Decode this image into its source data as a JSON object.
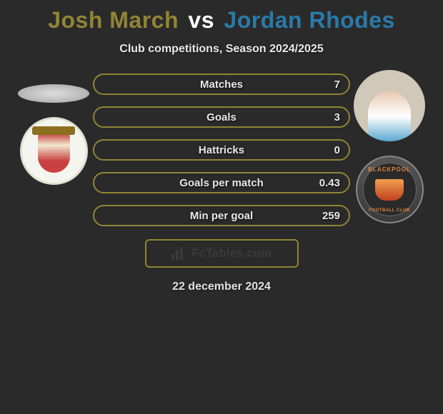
{
  "title": {
    "player1": "Josh March",
    "vs": "vs",
    "player2": "Jordan Rhodes",
    "player1_color": "#918434",
    "player2_color": "#2a7aa8"
  },
  "subtitle": "Club competitions, Season 2024/2025",
  "stats": [
    {
      "label": "Matches",
      "value": "7"
    },
    {
      "label": "Goals",
      "value": "3"
    },
    {
      "label": "Hattricks",
      "value": "0"
    },
    {
      "label": "Goals per match",
      "value": "0.43"
    },
    {
      "label": "Min per goal",
      "value": "259"
    }
  ],
  "branding": "FcTables.com",
  "date": "22 december 2024",
  "styling": {
    "background_color": "#2a2a2a",
    "border_color": "#918434",
    "text_color": "#e8e8e8",
    "stat_row_height": 30,
    "stat_border_radius": 15,
    "title_fontsize": 32,
    "subtitle_fontsize": 16,
    "stat_fontsize": 15
  }
}
